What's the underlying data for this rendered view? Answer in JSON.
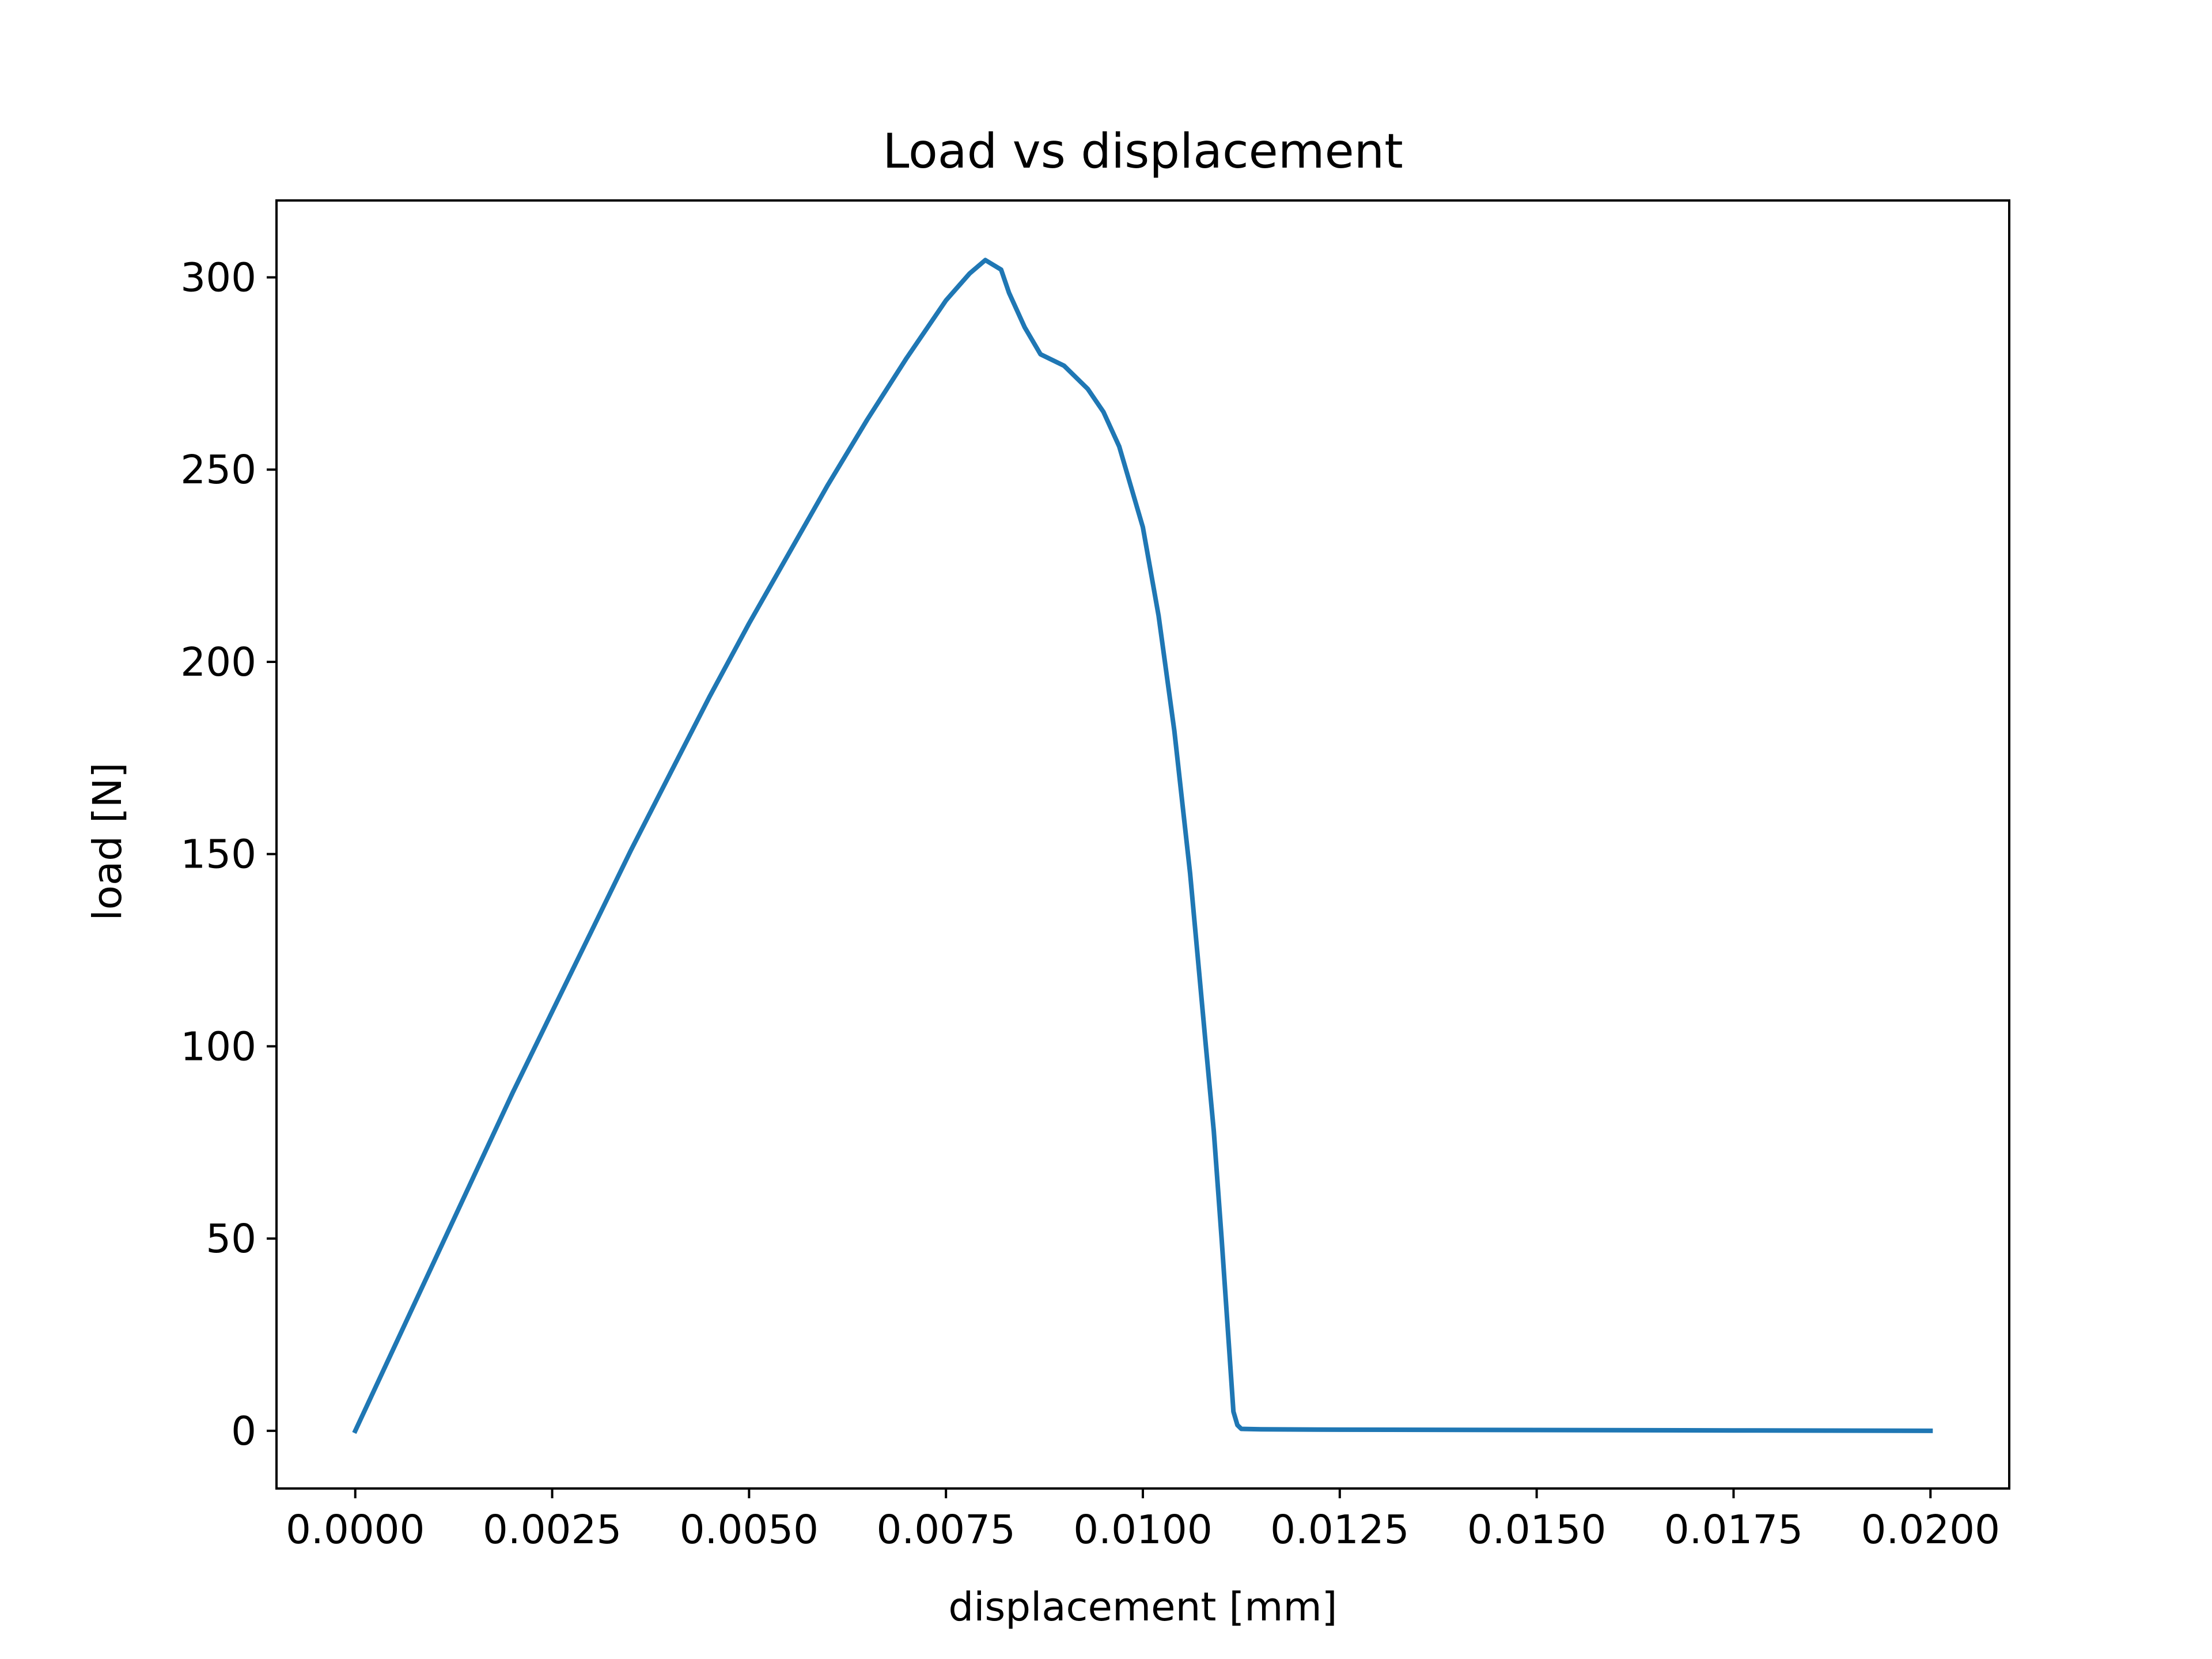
{
  "chart_data": {
    "type": "line",
    "title": "Load vs displacement",
    "xlabel": "displacement [mm]",
    "ylabel": "load [N]",
    "xlim": [
      -0.001,
      0.021
    ],
    "ylim": [
      -15,
      320
    ],
    "xticks": [
      0.0,
      0.0025,
      0.005,
      0.0075,
      0.01,
      0.0125,
      0.015,
      0.0175,
      0.02
    ],
    "xtick_labels": [
      "0.0000",
      "0.0025",
      "0.0050",
      "0.0075",
      "0.0100",
      "0.0125",
      "0.0150",
      "0.0175",
      "0.0200"
    ],
    "yticks": [
      0,
      50,
      100,
      150,
      200,
      250,
      300
    ],
    "ytick_labels": [
      "0",
      "50",
      "100",
      "150",
      "200",
      "250",
      "300"
    ],
    "grid": false,
    "legend": "none",
    "series": [
      {
        "color": "#1f77b4",
        "x": [
          0.0,
          0.0005,
          0.001,
          0.0015,
          0.002,
          0.0025,
          0.003,
          0.0035,
          0.004,
          0.0045,
          0.005,
          0.0055,
          0.006,
          0.0065,
          0.007,
          0.0075,
          0.0078,
          0.008,
          0.0082,
          0.0083,
          0.0085,
          0.0087,
          0.009,
          0.0093,
          0.0095,
          0.0097,
          0.01,
          0.0102,
          0.0104,
          0.0106,
          0.0108,
          0.0109,
          0.011,
          0.0111,
          0.01115,
          0.0112,
          0.01125,
          0.0115,
          0.0125,
          0.015,
          0.0175,
          0.02
        ],
        "y": [
          0,
          22,
          44,
          66,
          88,
          109,
          130,
          151,
          171,
          191,
          210,
          228,
          246,
          263,
          279,
          294,
          301,
          304.5,
          302,
          296,
          287,
          280,
          277,
          271,
          265,
          256,
          235,
          212,
          182,
          145,
          100,
          78,
          50,
          20,
          5,
          1.5,
          0.5,
          0.4,
          0.3,
          0.2,
          0.1,
          0
        ]
      }
    ]
  }
}
